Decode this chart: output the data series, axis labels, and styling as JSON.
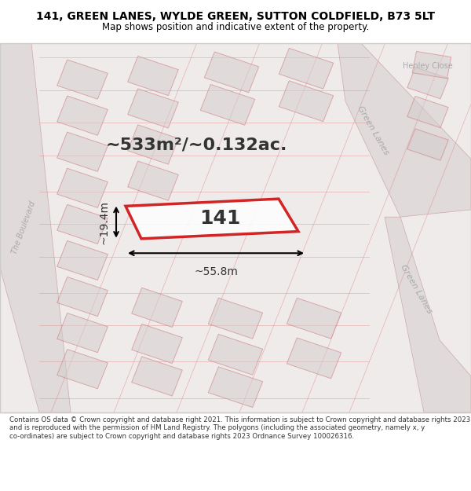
{
  "title_line1": "141, GREEN LANES, WYLDE GREEN, SUTTON COLDFIELD, B73 5LT",
  "title_line2": "Map shows position and indicative extent of the property.",
  "footer_text": "Contains OS data © Crown copyright and database right 2021. This information is subject to Crown copyright and database rights 2023 and is reproduced with the permission of HM Land Registry. The polygons (including the associated geometry, namely x, y co-ordinates) are subject to Crown copyright and database rights 2023 Ordnance Survey 100026316.",
  "bg_color": "#f5f0f0",
  "map_bg": "#f8f4f4",
  "road_fill": "#e8e0e0",
  "plot_outline_color": "#cc0000",
  "plot_fill_color": "#ffffff",
  "plot_fill_alpha": 0.3,
  "block_fill": "#d8d0d0",
  "block_stroke": "#cc0000",
  "block_stroke_alpha": 0.5,
  "road_label_color": "#999999",
  "street_label_color": "#aaaaaa",
  "area_text": "~533m²/~0.132ac.",
  "width_text": "~55.8m",
  "height_text": "~19.4m",
  "property_number": "141",
  "henley_close": "Henley Close",
  "green_lanes_upper": "Green Lanes",
  "green_lanes_lower": "Green Lanes",
  "the_boulevard": "The Boulevard"
}
